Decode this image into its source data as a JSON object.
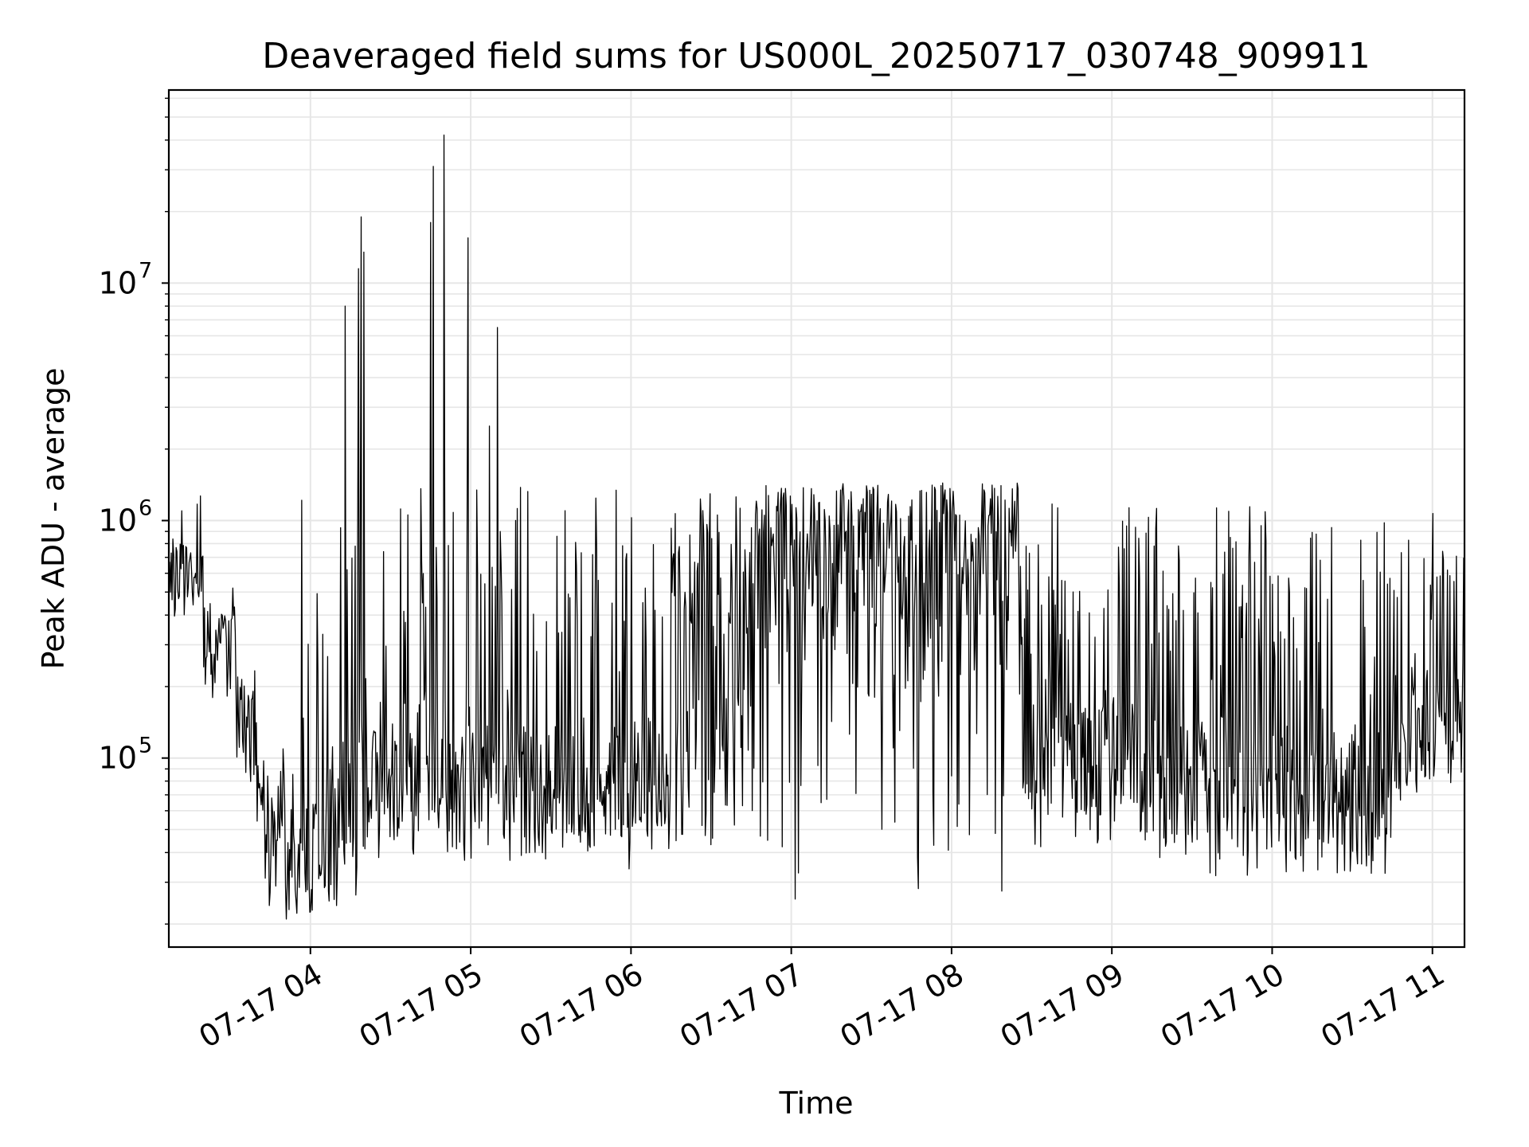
{
  "chart_data": {
    "type": "line",
    "title": "Deaveraged field sums for US000L_20250717_030748_909911",
    "xlabel": "Time",
    "ylabel": "Peak ADU - average",
    "x_scale": "time",
    "y_scale": "log",
    "xlim": [
      "07-17 03:07",
      "07-17 11:12"
    ],
    "ylim": [
      16000,
      65000000
    ],
    "xticks": [
      "07-17 04",
      "07-17 05",
      "07-17 06",
      "07-17 07",
      "07-17 08",
      "07-17 09",
      "07-17 10",
      "07-17 11"
    ],
    "yticks": [
      {
        "value": 100000,
        "base": "10",
        "exp": "5"
      },
      {
        "value": 1000000,
        "base": "10",
        "exp": "6"
      },
      {
        "value": 10000000,
        "base": "10",
        "exp": "7"
      }
    ],
    "grid": true,
    "line_color": "#000000",
    "grid_color": "#e6e6e6",
    "segments": [
      {
        "start": "07-17 03:07",
        "end": "07-17 03:20",
        "base": 600000,
        "spread": 0.2,
        "spike_rate": 0.1,
        "spike_max": 1300000
      },
      {
        "start": "07-17 03:20",
        "end": "07-17 03:32",
        "base": 300000,
        "spread": 0.25,
        "spike_rate": 0.08,
        "spike_max": 1000000
      },
      {
        "start": "07-17 03:32",
        "end": "07-17 03:40",
        "base": 130000,
        "spread": 0.3,
        "spike_rate": 0.08,
        "spike_max": 900000
      },
      {
        "start": "07-17 03:40",
        "end": "07-17 04:10",
        "base": 45000,
        "spread": 0.4,
        "spike_rate": 0.1,
        "spike_max": 1500000
      },
      {
        "start": "07-17 04:10",
        "end": "07-17 04:25",
        "base": 75000,
        "spread": 0.45,
        "spike_rate": 0.18,
        "spike_max": 1500000
      },
      {
        "start": "07-17 04:25",
        "end": "07-17 05:20",
        "base": 85000,
        "spread": 0.4,
        "spike_rate": 0.22,
        "spike_max": 1500000
      },
      {
        "start": "07-17 05:20",
        "end": "07-17 06:15",
        "base": 75000,
        "spread": 0.35,
        "spike_rate": 0.22,
        "spike_max": 1450000
      },
      {
        "start": "07-17 06:15",
        "end": "07-17 06:45",
        "base": 95000,
        "spread": 0.4,
        "spike_rate": 0.5,
        "spike_max": 1450000
      },
      {
        "start": "07-17 06:45",
        "end": "07-17 08:25",
        "base": 160000,
        "spread": 0.9,
        "spike_rate": 0.75,
        "spike_max": 1450000
      },
      {
        "start": "07-17 08:25",
        "end": "07-17 08:30",
        "base": 120000,
        "spread": 0.5,
        "spike_rate": 0.4,
        "spike_max": 900000
      },
      {
        "start": "07-17 08:30",
        "end": "07-17 09:10",
        "base": 90000,
        "spread": 0.4,
        "spike_rate": 0.22,
        "spike_max": 1200000
      },
      {
        "start": "07-17 09:10",
        "end": "07-17 10:45",
        "base": 70000,
        "spread": 0.4,
        "spike_rate": 0.22,
        "spike_max": 1200000
      },
      {
        "start": "07-17 10:45",
        "end": "07-17 11:12",
        "base": 130000,
        "spread": 0.35,
        "spike_rate": 0.2,
        "spike_max": 1100000
      }
    ],
    "peaks": [
      {
        "x": "07-17 04:13",
        "y": 8000000
      },
      {
        "x": "07-17 04:18",
        "y": 11500000
      },
      {
        "x": "07-17 04:19",
        "y": 19000000
      },
      {
        "x": "07-17 04:20",
        "y": 13500000
      },
      {
        "x": "07-17 04:45",
        "y": 18000000
      },
      {
        "x": "07-17 04:46",
        "y": 31000000
      },
      {
        "x": "07-17 04:50",
        "y": 42000000
      },
      {
        "x": "07-17 04:59",
        "y": 15500000
      },
      {
        "x": "07-17 05:07",
        "y": 2500000
      },
      {
        "x": "07-17 05:10",
        "y": 6500000
      }
    ],
    "minima": [
      {
        "x": "07-17 03:52",
        "y": 23000
      },
      {
        "x": "07-17 04:00",
        "y": 22500
      },
      {
        "x": "07-17 04:07",
        "y": 25000
      },
      {
        "x": "07-17 04:17",
        "y": 26500
      }
    ]
  }
}
